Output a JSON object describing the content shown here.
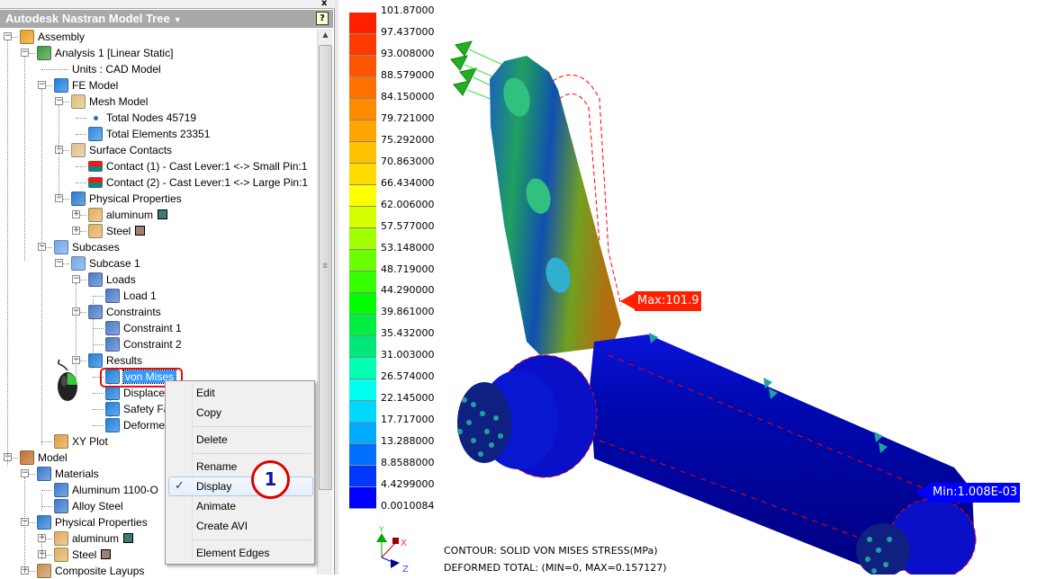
{
  "panel": {
    "title": "Autodesk Nastran Model Tree",
    "caret_icon": "dropdown-caret-icon",
    "help_label": "?",
    "close_label": "x"
  },
  "tree": {
    "rows": [
      {
        "label": "Assembly",
        "level": 0,
        "exp": "-",
        "icon": "assembly-icon",
        "color": "#e8a020"
      },
      {
        "label": "Analysis 1 [Linear Static]",
        "level": 1,
        "exp": "-",
        "icon": "analysis-icon",
        "color": "#3a9a3a"
      },
      {
        "label": "Units : CAD Model",
        "level": 2,
        "exp": "",
        "icon": ""
      },
      {
        "label": "FE Model",
        "level": 2,
        "exp": "-",
        "icon": "fe-model-icon",
        "color": "#1a7fe0"
      },
      {
        "label": "Mesh Model",
        "level": 3,
        "exp": "-",
        "icon": "mesh-model-icon",
        "color": "#e0c080"
      },
      {
        "label": "Total Nodes 45719",
        "level": 4,
        "exp": "",
        "icon": "node-icon",
        "color": "#2a6ad0"
      },
      {
        "label": "Total Elements 23351",
        "level": 4,
        "exp": "",
        "icon": "element-icon",
        "color": "#2a8ae0"
      },
      {
        "label": "Surface Contacts",
        "level": 3,
        "exp": "-",
        "icon": "surface-contacts-icon",
        "color": "#e0c090"
      },
      {
        "label": "Contact (1) - Cast Lever:1 <-> Small Pin:1",
        "level": 4,
        "exp": "",
        "icon": "contact-icon",
        "color": "#e02020"
      },
      {
        "label": "Contact (2) - Cast Lever:1 <-> Large Pin:1",
        "level": 4,
        "exp": "",
        "icon": "contact-icon",
        "color": "#e02020"
      },
      {
        "label": "Physical Properties",
        "level": 3,
        "exp": "-",
        "icon": "physical-properties-icon",
        "color": "#2a7ad0"
      },
      {
        "label": "aluminum",
        "level": 4,
        "exp": "+",
        "icon": "property-cube-icon",
        "color": "#e0b060",
        "swatch": "#3e7a78"
      },
      {
        "label": "Steel",
        "level": 4,
        "exp": "+",
        "icon": "property-cube-icon",
        "color": "#e0b060",
        "swatch": "#a08070"
      },
      {
        "label": "Subcases",
        "level": 2,
        "exp": "-",
        "icon": "subcases-icon",
        "color": "#70a8e8"
      },
      {
        "label": "Subcase 1",
        "level": 3,
        "exp": "-",
        "icon": "subcase-icon",
        "color": "#70a8e8"
      },
      {
        "label": "Loads",
        "level": 4,
        "exp": "-",
        "icon": "loads-icon",
        "color": "#4a78c8"
      },
      {
        "label": "Load 1",
        "level": 5,
        "exp": "",
        "icon": "load-icon",
        "color": "#4a78c8"
      },
      {
        "label": "Constraints",
        "level": 4,
        "exp": "-",
        "icon": "constraints-icon",
        "color": "#4a78c8"
      },
      {
        "label": "Constraint 1",
        "level": 5,
        "exp": "",
        "icon": "constraint-icon",
        "color": "#4a78c8"
      },
      {
        "label": "Constraint 2",
        "level": 5,
        "exp": "",
        "icon": "constraint-icon",
        "color": "#4a78c8"
      },
      {
        "label": "Results",
        "level": 4,
        "exp": "-",
        "icon": "results-icon",
        "color": "#1a7fe0"
      },
      {
        "label": "von Mises",
        "level": 5,
        "exp": "",
        "icon": "result-contour-icon",
        "color": "#1a7fe0",
        "selected": true
      },
      {
        "label": "Displacem",
        "level": 5,
        "exp": "",
        "icon": "result-icon",
        "color": "#1a7fe0"
      },
      {
        "label": "Safety Fa",
        "level": 5,
        "exp": "",
        "icon": "result-icon",
        "color": "#1a7fe0"
      },
      {
        "label": "Deforme",
        "level": 5,
        "exp": "",
        "icon": "result-icon",
        "color": "#1a7fe0"
      },
      {
        "label": "XY Plot",
        "level": 2,
        "exp": "",
        "icon": "xy-plot-icon",
        "color": "#e0a040"
      },
      {
        "label": "Model",
        "level": 0,
        "exp": "-",
        "icon": "model-icon",
        "color": "#c07030"
      },
      {
        "label": "Materials",
        "level": 1,
        "exp": "-",
        "icon": "materials-icon",
        "color": "#3a7ad0"
      },
      {
        "label": "Aluminum 1100-O",
        "level": 2,
        "exp": "",
        "icon": "material-icon",
        "color": "#3a7ad0"
      },
      {
        "label": "Alloy Steel",
        "level": 2,
        "exp": "",
        "icon": "material-icon",
        "color": "#3a7ad0"
      },
      {
        "label": "Physical Properties",
        "level": 1,
        "exp": "-",
        "icon": "physical-properties-icon",
        "color": "#2a7ad0"
      },
      {
        "label": "aluminum",
        "level": 2,
        "exp": "+",
        "icon": "property-cube-icon",
        "color": "#e0b060",
        "swatch": "#3e7a78"
      },
      {
        "label": "Steel",
        "level": 2,
        "exp": "+",
        "icon": "property-cube-icon",
        "color": "#e0b060",
        "swatch": "#a08070"
      },
      {
        "label": "Composite Layups",
        "level": 1,
        "exp": "+",
        "icon": "composite-layups-icon",
        "color": "#c89050"
      }
    ]
  },
  "context_menu": {
    "items": [
      "Edit",
      "Copy",
      "Delete",
      "Rename",
      "Display",
      "Animate",
      "Create AVI",
      "Element Edges"
    ],
    "checked": "Display",
    "step_badge": "1"
  },
  "legend": {
    "labels": [
      "101.87000",
      "97.437000",
      "93.008000",
      "88.579000",
      "84.150000",
      "79.721000",
      "75.292000",
      "70.863000",
      "66.434000",
      "62.006000",
      "57.577000",
      "53.148000",
      "48.719000",
      "44.290000",
      "39.861000",
      "35.432000",
      "31.003000",
      "26.574000",
      "22.145000",
      "17.717000",
      "13.288000",
      "8.8588000",
      "4.4299000",
      "0.0010084"
    ],
    "colors": [
      "#ff2000",
      "#ff3a00",
      "#ff5500",
      "#ff7000",
      "#ff8a00",
      "#ffa500",
      "#ffc000",
      "#ffdb00",
      "#ffff00",
      "#d4ff00",
      "#a0ff00",
      "#6aff00",
      "#35ff00",
      "#00ff00",
      "#00ee40",
      "#00e87a",
      "#00ffb0",
      "#00ffee",
      "#00d8ff",
      "#00aaff",
      "#0070ff",
      "#0038ff",
      "#0000ff"
    ]
  },
  "viewport": {
    "max_label": "Max:101.9",
    "min_label": "Min:1.008E-03",
    "max_color": "#ff2000",
    "min_color": "#0000ff",
    "caption_line1": "CONTOUR: SOLID VON MISES STRESS(MPa)",
    "caption_line2": "DEFORMED TOTAL: (MIN=0, MAX=0.157127)",
    "triad": {
      "x": "X",
      "y": "Y",
      "z": "Z"
    }
  }
}
